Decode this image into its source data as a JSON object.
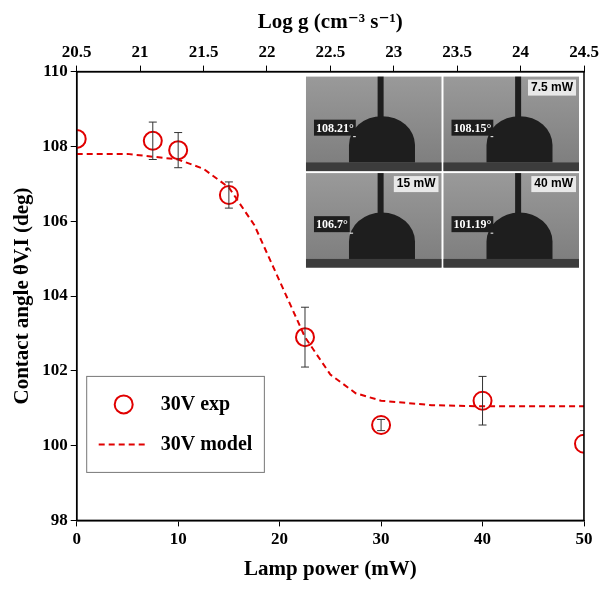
{
  "chart_data": {
    "type": "scatter",
    "x_label": "Lamp power (mW)",
    "y_label": "Contact angle θV,I (deg)",
    "x2_label": "Log g (cm⁻³ s⁻¹)",
    "xlim": [
      0,
      50
    ],
    "xticks": [
      0,
      10,
      20,
      30,
      40,
      50
    ],
    "x2lim": [
      20.5,
      24.5
    ],
    "x2ticks": [
      20.5,
      21,
      21.5,
      22,
      22.5,
      23,
      23.5,
      24,
      24.5
    ],
    "ylim": [
      98,
      110
    ],
    "yticks": [
      98,
      100,
      102,
      104,
      106,
      108,
      110
    ],
    "grid": false,
    "legend": "lower left",
    "series": [
      {
        "name": "30V exp",
        "type": "scatter",
        "color": "#e00000",
        "marker": "circle",
        "x": [
          0,
          7.5,
          10,
          15,
          22.5,
          30,
          40,
          50
        ],
        "values": [
          108.2,
          108.15,
          107.9,
          106.7,
          102.9,
          100.55,
          101.2,
          100.05
        ],
        "error_plus": [
          0,
          0.5,
          0.47,
          0.35,
          0.8,
          0.15,
          0.65,
          0.35
        ],
        "error_minus": [
          0,
          0.5,
          0.47,
          0.35,
          0.8,
          0.15,
          0.65,
          2.1
        ]
      },
      {
        "name": "30V model",
        "type": "line",
        "color": "#e00000",
        "line_style": "dashed",
        "x": [
          0,
          5,
          10,
          12.5,
          15,
          17.5,
          20,
          22.5,
          25,
          27.5,
          30,
          35,
          40,
          45,
          50
        ],
        "values": [
          107.8,
          107.8,
          107.65,
          107.4,
          106.9,
          105.9,
          104.4,
          102.9,
          101.9,
          101.4,
          101.2,
          101.08,
          101.05,
          101.05,
          101.05
        ]
      }
    ],
    "inset": {
      "panels": [
        {
          "angle": "108.21°"
        },
        {
          "label": "7.5 mW",
          "angle": "108.15°"
        },
        {
          "label": "15 mW",
          "angle": "106.7°"
        },
        {
          "label": "40 mW",
          "angle": "101.19°"
        }
      ]
    }
  }
}
